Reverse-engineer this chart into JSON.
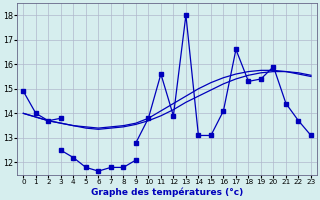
{
  "xlabel": "Graphe des températures (°c)",
  "background_color": "#d6eeee",
  "grid_color": "#b0b8cc",
  "line_color": "#0000bb",
  "hours": [
    0,
    1,
    2,
    3,
    4,
    5,
    6,
    7,
    8,
    9,
    10,
    11,
    12,
    13,
    14,
    15,
    16,
    17,
    18,
    19,
    20,
    21,
    22,
    23
  ],
  "line_main": [
    14.9,
    14.0,
    13.7,
    13.8,
    null,
    null,
    null,
    null,
    null,
    12.8,
    13.8,
    15.6,
    13.9,
    18.0,
    13.1,
    13.1,
    14.1,
    16.6,
    15.3,
    15.4,
    15.9,
    14.4,
    13.7,
    13.1
  ],
  "line_bot": [
    null,
    null,
    null,
    12.5,
    12.2,
    11.8,
    11.65,
    11.8,
    11.8,
    12.1,
    null,
    null,
    null,
    null,
    null,
    null,
    null,
    null,
    null,
    null,
    null,
    null,
    null,
    null
  ],
  "line_trend1": [
    14.0,
    13.85,
    13.7,
    13.6,
    13.5,
    13.4,
    13.35,
    13.4,
    13.45,
    13.55,
    13.7,
    13.9,
    14.15,
    14.45,
    14.7,
    14.95,
    15.2,
    15.4,
    15.55,
    15.65,
    15.7,
    15.7,
    15.65,
    15.55
  ],
  "line_trend2": [
    14.0,
    13.85,
    13.7,
    13.6,
    13.5,
    13.45,
    13.4,
    13.45,
    13.5,
    13.6,
    13.8,
    14.1,
    14.4,
    14.7,
    15.0,
    15.25,
    15.45,
    15.6,
    15.7,
    15.75,
    15.75,
    15.7,
    15.6,
    15.5
  ],
  "ylim": [
    11.5,
    18.5
  ],
  "yticks": [
    12,
    13,
    14,
    15,
    16,
    17,
    18
  ],
  "xlim": [
    -0.5,
    23.5
  ]
}
